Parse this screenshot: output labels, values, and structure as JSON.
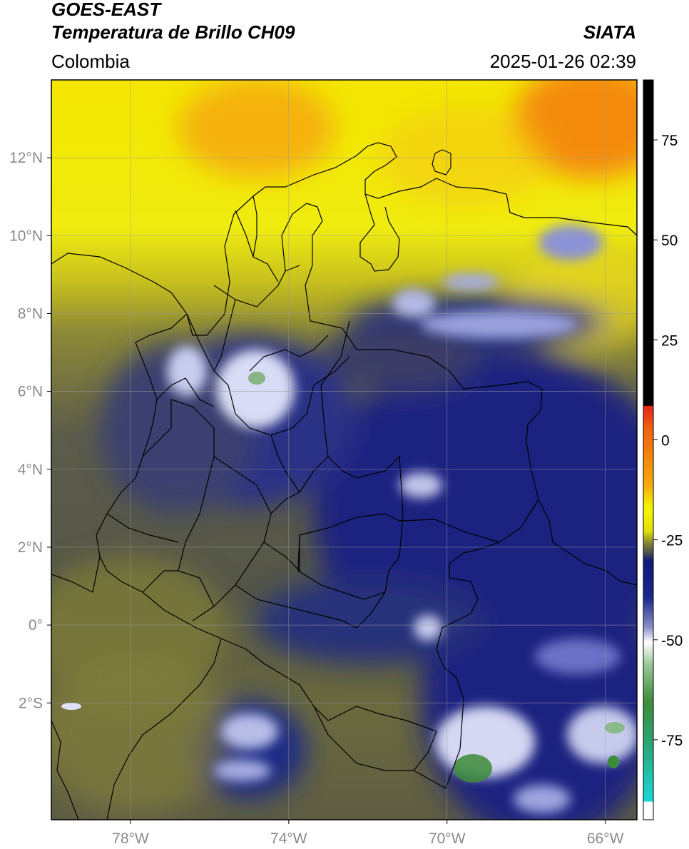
{
  "header": {
    "satellite": "GOES-EAST",
    "product": "Temperatura de Brillo CH09",
    "region": "Colombia",
    "agency": "SIATA",
    "datetime": "2025-01-26 02:39"
  },
  "map": {
    "lon_range": [
      -80,
      -65.2
    ],
    "lat_range": [
      -5.0,
      14.0
    ],
    "lat_ticks": [
      {
        "value": 12,
        "label": "12°N"
      },
      {
        "value": 10,
        "label": "10°N"
      },
      {
        "value": 8,
        "label": "8°N"
      },
      {
        "value": 6,
        "label": "6°N"
      },
      {
        "value": 4,
        "label": "4°N"
      },
      {
        "value": 2,
        "label": "2°N"
      },
      {
        "value": 0,
        "label": "0°"
      },
      {
        "value": -2,
        "label": "2°S"
      }
    ],
    "lon_ticks": [
      {
        "value": -78,
        "label": "78°W"
      },
      {
        "value": -74,
        "label": "74°W"
      },
      {
        "value": -70,
        "label": "70°W"
      },
      {
        "value": -66,
        "label": "66°W"
      }
    ],
    "grid": true
  },
  "colorbar": {
    "range": [
      -95,
      90
    ],
    "ticks": [
      75,
      50,
      25,
      0,
      -25,
      -50,
      -75
    ],
    "colors": {
      "black": "#000000",
      "red": "#e8241a",
      "orange": "#f59a0c",
      "yellow": "#f5f500",
      "olive": "#8a8a2e",
      "gray": "#4a4a52",
      "navy": "#101a7a",
      "white": "#ffffff",
      "green": "#3d8c3a",
      "cyan": "#18d8d8"
    }
  }
}
